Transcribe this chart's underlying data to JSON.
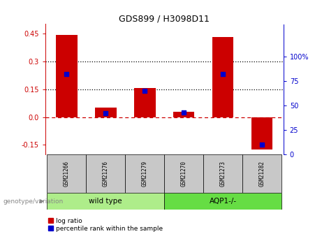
{
  "title": "GDS899 / H3098D11",
  "categories": [
    "GSM21266",
    "GSM21276",
    "GSM21279",
    "GSM21270",
    "GSM21273",
    "GSM21282"
  ],
  "log_ratios": [
    0.44,
    0.05,
    0.155,
    0.03,
    0.43,
    -0.175
  ],
  "percentile_ranks": [
    82,
    42,
    65,
    43,
    82,
    10
  ],
  "groups": [
    {
      "label": "wild type",
      "indices": [
        0,
        1,
        2
      ],
      "color": "#aeed8a"
    },
    {
      "label": "AQP1-/-",
      "indices": [
        3,
        4,
        5
      ],
      "color": "#66dd44"
    }
  ],
  "bar_color": "#cc0000",
  "dot_color": "#0000cc",
  "ylim_left": [
    -0.2,
    0.5
  ],
  "ylim_right": [
    0,
    133.33
  ],
  "yticks_left": [
    -0.15,
    0.0,
    0.15,
    0.3,
    0.45
  ],
  "yticks_right": [
    0,
    25,
    50,
    75,
    100
  ],
  "hlines": [
    0.15,
    0.3
  ],
  "zero_line_color": "#cc0000",
  "hline_color": "#000000",
  "bar_width": 0.55,
  "legend_red_label": "log ratio",
  "legend_blue_label": "percentile rank within the sample",
  "genotype_label": "genotype/variation",
  "sample_row_color": "#c8c8c8",
  "right_axis_color": "#0000cc",
  "left_axis_color": "#cc0000"
}
